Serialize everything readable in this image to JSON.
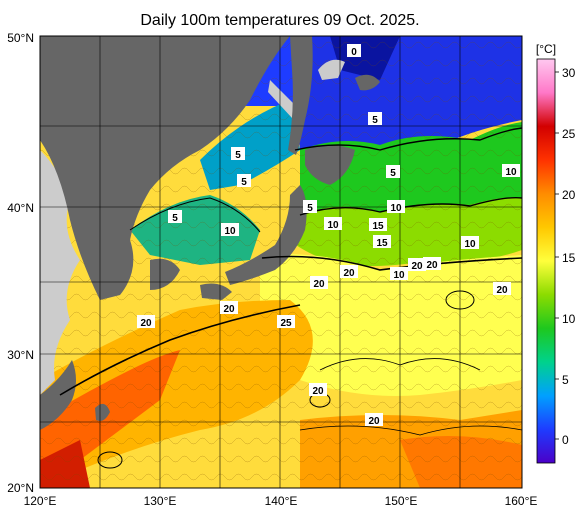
{
  "title": "Daily 100m temperatures 09 Oct. 2025.",
  "map": {
    "lon_range": [
      120,
      160
    ],
    "lat_range": [
      20,
      50
    ],
    "lon_ticks": [
      "120°E",
      "130°E",
      "140°E",
      "150°E",
      "160°E"
    ],
    "lat_ticks": [
      "20°N",
      "30°N",
      "40°N",
      "50°N"
    ],
    "grid": true,
    "land_color": "#666666",
    "out_of_domain_land_color": "#cccccc"
  },
  "colorbar": {
    "unit": "[°C]",
    "ticks": [
      "0",
      "5",
      "10",
      "15",
      "20",
      "25",
      "30"
    ],
    "stops": [
      "#4b00c8",
      "#1e3cff",
      "#00a0ff",
      "#00d28c",
      "#1ec81e",
      "#8cdc00",
      "#ffff3c",
      "#ffc800",
      "#ff8c00",
      "#ff3200",
      "#d20000",
      "#ff78c8",
      "#ffc8f0"
    ]
  },
  "contour_labels": [
    "0",
    "5",
    "5",
    "5",
    "5",
    "5",
    "10",
    "5",
    "10",
    "10",
    "15",
    "10",
    "15",
    "10",
    "10",
    "20",
    "20",
    "20",
    "20",
    "20",
    "20",
    "20",
    "25",
    "20",
    "20"
  ]
}
